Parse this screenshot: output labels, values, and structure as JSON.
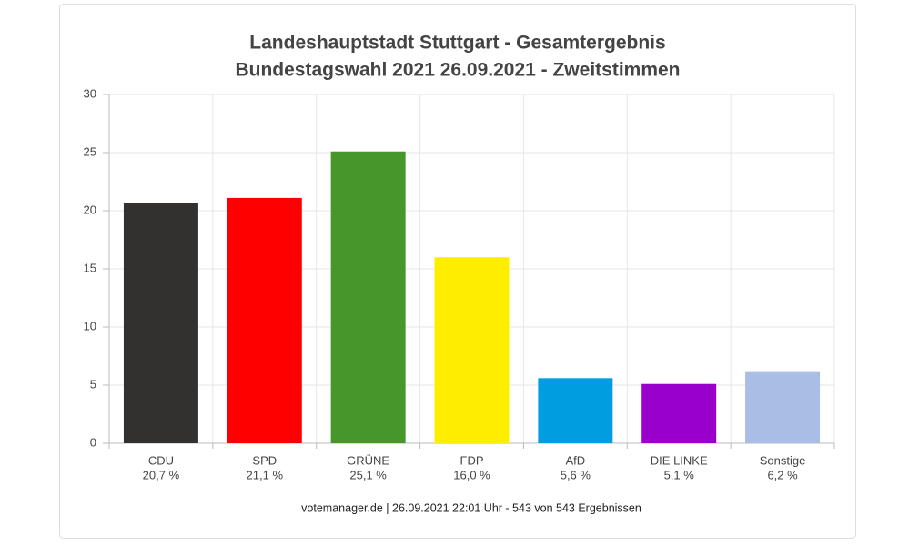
{
  "chart_data": {
    "type": "bar",
    "title": "Landeshauptstadt Stuttgart - Gesamtergebnis",
    "subtitle": "Bundestagswahl 2021 26.09.2021  - Zweitstimmen",
    "categories": [
      "CDU",
      "SPD",
      "GRÜNE",
      "FDP",
      "AfD",
      "DIE LINKE",
      "Sonstige"
    ],
    "values": [
      20.7,
      21.1,
      25.1,
      16.0,
      5.6,
      5.1,
      6.2
    ],
    "value_labels": [
      "20,7 %",
      "21,1 %",
      "25,1 %",
      "16,0 %",
      "5,6 %",
      "5,1 %",
      "6,2 %"
    ],
    "colors": [
      "#333130",
      "#fe0000",
      "#46962b",
      "#ffed00",
      "#009ee0",
      "#9900cc",
      "#a9bde5"
    ],
    "ylim": [
      0,
      30
    ],
    "yticks": [
      0,
      5,
      10,
      15,
      20,
      25,
      30
    ],
    "grid": true,
    "footer": "votemanager.de | 26.09.2021 22:01 Uhr - 543 von 543 Ergebnissen"
  }
}
